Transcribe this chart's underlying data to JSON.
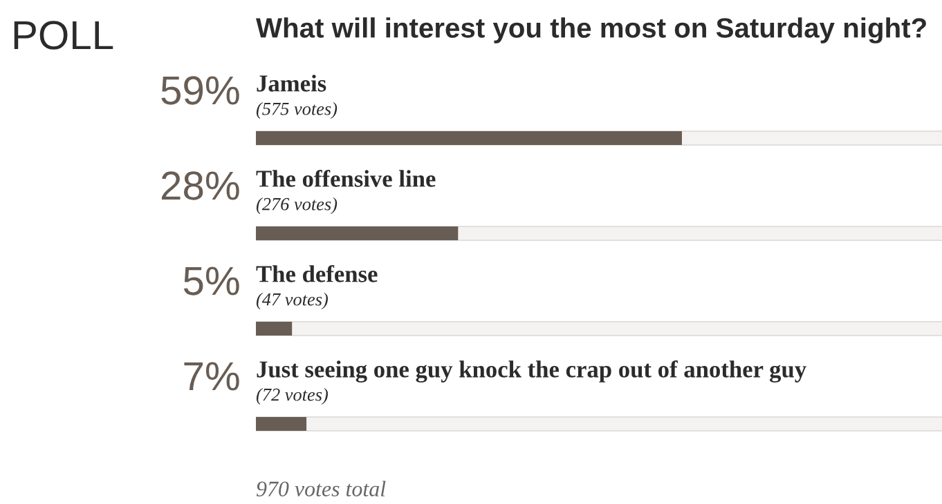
{
  "chart_data": {
    "type": "bar",
    "orientation": "horizontal",
    "title": "POLL",
    "subtitle": "What will interest you the most on Saturday night?",
    "categories": [
      "Jameis",
      "The offensive line",
      "The defense",
      "Just seeing one guy knock the crap out of another guy"
    ],
    "values": [
      59,
      28,
      5,
      7
    ],
    "value_labels": [
      "59%",
      "28%",
      "5%",
      "7%"
    ],
    "color": "#685d54",
    "xlim": [
      0,
      100
    ],
    "annotations": [
      "(575 votes)",
      "(276 votes)",
      "(47 votes)",
      "(72 votes)",
      "970 votes total"
    ]
  }
}
